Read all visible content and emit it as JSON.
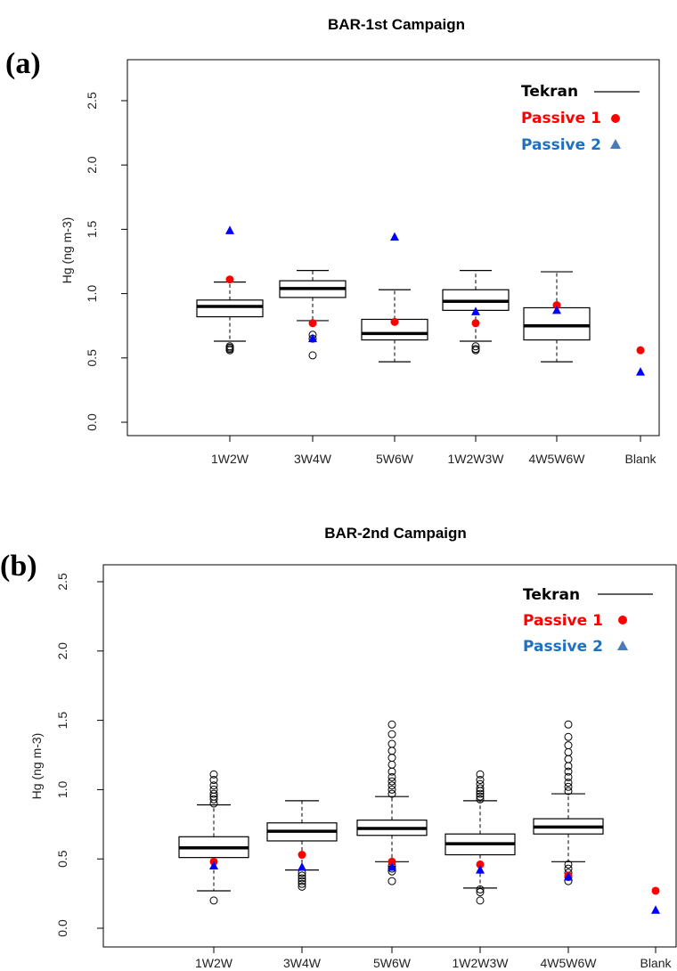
{
  "colors": {
    "tekran": "#000000",
    "passive1": "#ff0000",
    "passive2": "#1e70c0",
    "passive2_marker": "#0000ff",
    "passive2_legend_marker": "#4a7ab8"
  },
  "legend": [
    "Tekran",
    "Passive 1",
    "Passive 2"
  ],
  "chart_data": [
    {
      "type": "boxplot",
      "panel_label": "(a)",
      "title": "BAR-1st Campaign",
      "ylabel": "Hg (ng m-3)",
      "ylim": [
        0,
        2.5
      ],
      "yticks": [
        "0.0",
        "0.5",
        "1.0",
        "1.5",
        "2.0",
        "2.5"
      ],
      "categories": [
        "1W2W",
        "3W4W",
        "5W6W",
        "1W2W3W",
        "4W5W6W",
        "Blank"
      ],
      "legend_position": "top-right",
      "boxes": [
        {
          "category": "1W2W",
          "whisker_low": 0.63,
          "q1": 0.82,
          "median": 0.9,
          "q3": 0.95,
          "whisker_high": 1.09,
          "outliers": [
            0.56,
            0.57,
            0.58,
            0.59
          ]
        },
        {
          "category": "3W4W",
          "whisker_low": 0.79,
          "q1": 0.97,
          "median": 1.04,
          "q3": 1.1,
          "whisker_high": 1.18,
          "outliers": [
            0.52,
            0.65,
            0.68
          ]
        },
        {
          "category": "5W6W",
          "whisker_low": 0.47,
          "q1": 0.64,
          "median": 0.69,
          "q3": 0.8,
          "whisker_high": 1.03,
          "outliers": []
        },
        {
          "category": "1W2W3W",
          "whisker_low": 0.63,
          "q1": 0.87,
          "median": 0.94,
          "q3": 1.03,
          "whisker_high": 1.18,
          "outliers": [
            0.56,
            0.57,
            0.59
          ]
        },
        {
          "category": "4W5W6W",
          "whisker_low": 0.47,
          "q1": 0.64,
          "median": 0.75,
          "q3": 0.89,
          "whisker_high": 1.17,
          "outliers": []
        }
      ],
      "series": [
        {
          "name": "Passive 1",
          "marker": "circle",
          "values": [
            1.11,
            0.77,
            0.78,
            0.77,
            0.91,
            0.56
          ]
        },
        {
          "name": "Passive 2",
          "marker": "triangle",
          "values": [
            1.49,
            0.65,
            1.44,
            0.86,
            0.87,
            0.39
          ]
        }
      ]
    },
    {
      "type": "boxplot",
      "panel_label": "(b)",
      "title": "BAR-2nd Campaign",
      "ylabel": "Hg (ng m-3)",
      "ylim": [
        0,
        2.5
      ],
      "yticks": [
        "0.0",
        "0.5",
        "1.0",
        "1.5",
        "2.0",
        "2.5"
      ],
      "categories": [
        "1W2W",
        "3W4W",
        "5W6W",
        "1W2W3W",
        "4W5W6W",
        "Blank"
      ],
      "legend_position": "top-right",
      "boxes": [
        {
          "category": "1W2W",
          "whisker_low": 0.27,
          "q1": 0.51,
          "median": 0.58,
          "q3": 0.66,
          "whisker_high": 0.89,
          "outliers": [
            0.2,
            0.9,
            0.93,
            0.95,
            0.97,
            1.0,
            1.03,
            1.07,
            1.11
          ]
        },
        {
          "category": "3W4W",
          "whisker_low": 0.42,
          "q1": 0.63,
          "median": 0.7,
          "q3": 0.76,
          "whisker_high": 0.92,
          "outliers": [
            0.3,
            0.32,
            0.34,
            0.36,
            0.38,
            0.4
          ]
        },
        {
          "category": "5W6W",
          "whisker_low": 0.48,
          "q1": 0.67,
          "median": 0.72,
          "q3": 0.78,
          "whisker_high": 0.95,
          "outliers": [
            0.34,
            0.41,
            0.43,
            0.45,
            0.97,
            1.0,
            1.03,
            1.06,
            1.09,
            1.13,
            1.18,
            1.23,
            1.28,
            1.33,
            1.4,
            1.47
          ]
        },
        {
          "category": "1W2W3W",
          "whisker_low": 0.29,
          "q1": 0.53,
          "median": 0.61,
          "q3": 0.68,
          "whisker_high": 0.92,
          "outliers": [
            0.2,
            0.26,
            0.28,
            0.93,
            0.95,
            0.97,
            0.99,
            1.01,
            1.04,
            1.07,
            1.11
          ]
        },
        {
          "category": "4W5W6W",
          "whisker_low": 0.48,
          "q1": 0.68,
          "median": 0.73,
          "q3": 0.79,
          "whisker_high": 0.97,
          "outliers": [
            0.34,
            0.37,
            0.4,
            0.43,
            0.46,
            0.99,
            1.02,
            1.05,
            1.09,
            1.13,
            1.17,
            1.22,
            1.27,
            1.32,
            1.38,
            1.47
          ]
        }
      ],
      "series": [
        {
          "name": "Passive 1",
          "marker": "circle",
          "values": [
            0.48,
            0.53,
            0.48,
            0.46,
            0.38,
            0.27
          ]
        },
        {
          "name": "Passive 2",
          "marker": "triangle",
          "values": [
            0.45,
            0.44,
            0.44,
            0.42,
            0.37,
            0.13
          ]
        }
      ]
    }
  ]
}
